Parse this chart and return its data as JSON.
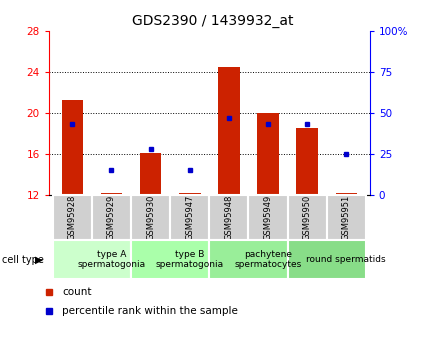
{
  "title": "GDS2390 / 1439932_at",
  "samples": [
    "GSM95928",
    "GSM95929",
    "GSM95930",
    "GSM95947",
    "GSM95948",
    "GSM95949",
    "GSM95950",
    "GSM95951"
  ],
  "counts": [
    21.3,
    12.2,
    16.1,
    12.2,
    24.5,
    20.0,
    18.5,
    12.2
  ],
  "percentile_ranks": [
    43,
    15,
    28,
    15,
    47,
    43,
    43,
    25
  ],
  "ylim_left": [
    12,
    28
  ],
  "ylim_right": [
    0,
    100
  ],
  "yticks_left": [
    12,
    16,
    20,
    24,
    28
  ],
  "yticks_right": [
    0,
    25,
    50,
    75,
    100
  ],
  "ytick_labels_right": [
    "0",
    "25",
    "50",
    "75",
    "100%"
  ],
  "bar_color": "#cc2200",
  "square_color": "#0000cc",
  "cell_groups": [
    {
      "label": "type A\nspermatogonia",
      "start": 0,
      "end": 2,
      "color": "#ccffcc"
    },
    {
      "label": "type B\nspermatogonia",
      "start": 2,
      "end": 4,
      "color": "#aaffaa"
    },
    {
      "label": "pachytene\nspermatocytes",
      "start": 4,
      "end": 6,
      "color": "#99ee99"
    },
    {
      "label": "round spermatids",
      "start": 6,
      "end": 8,
      "color": "#88dd88"
    }
  ],
  "cell_type_label": "cell type",
  "title_fontsize": 10,
  "tick_fontsize": 7.5,
  "bar_bottom": 12.0,
  "sample_box_color": "#d0d0d0",
  "fig_width": 4.25,
  "fig_height": 3.45
}
